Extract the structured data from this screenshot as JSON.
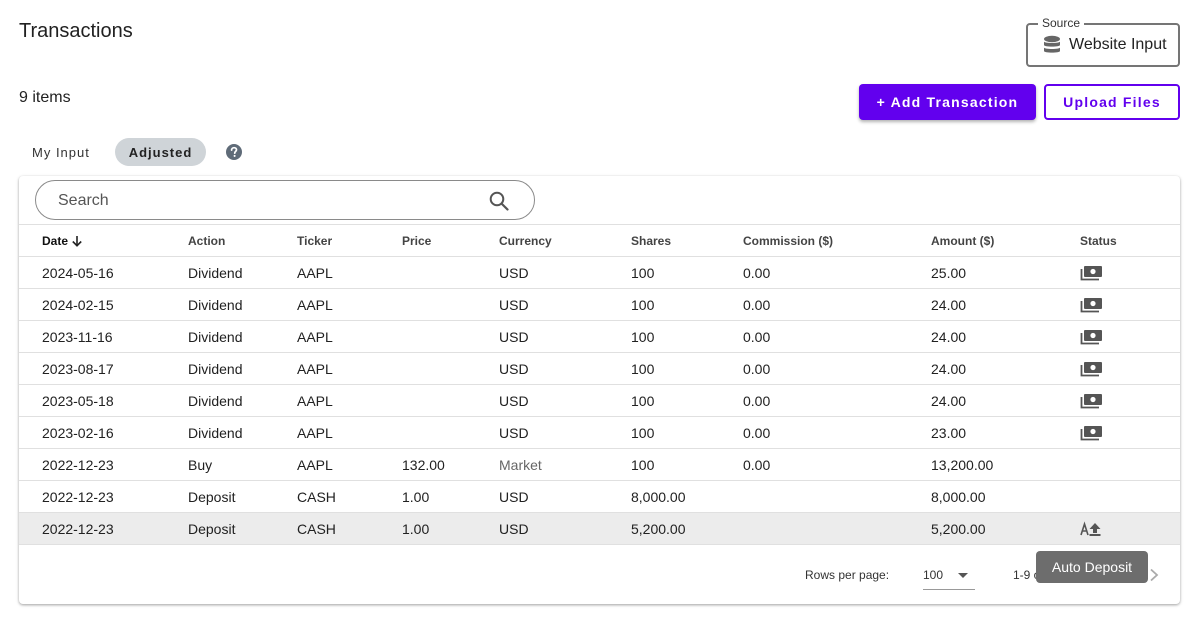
{
  "header": {
    "title": "Transactions",
    "item_count": "9 items"
  },
  "source": {
    "legend": "Source",
    "value": "Website Input",
    "icon": "database-icon"
  },
  "actions": {
    "add_label": "+ Add Transaction",
    "upload_label": "Upload Files"
  },
  "view_toggle": {
    "my_input": "My Input",
    "adjusted": "Adjusted",
    "selected": "Adjusted"
  },
  "search": {
    "placeholder": "Search",
    "value": ""
  },
  "colors": {
    "accent": "#6200ee",
    "toggle_selected": "#cfd4d8",
    "row_highlight": "#ececec",
    "tooltip_bg": "#6d6d6d"
  },
  "table": {
    "columns": {
      "date": "Date",
      "action": "Action",
      "ticker": "Ticker",
      "price": "Price",
      "currency": "Currency",
      "shares": "Shares",
      "commission": "Commission ($)",
      "amount": "Amount ($)",
      "status": "Status"
    },
    "sort": {
      "column": "date",
      "direction": "descending"
    },
    "rows": [
      {
        "date": "2024-05-16",
        "action": "Dividend",
        "ticker": "AAPL",
        "price": "",
        "currency": "USD",
        "shares": "100",
        "commission": "0.00",
        "amount": "25.00",
        "status_icon": "cash-icon"
      },
      {
        "date": "2024-02-15",
        "action": "Dividend",
        "ticker": "AAPL",
        "price": "",
        "currency": "USD",
        "shares": "100",
        "commission": "0.00",
        "amount": "24.00",
        "status_icon": "cash-icon"
      },
      {
        "date": "2023-11-16",
        "action": "Dividend",
        "ticker": "AAPL",
        "price": "",
        "currency": "USD",
        "shares": "100",
        "commission": "0.00",
        "amount": "24.00",
        "status_icon": "cash-icon"
      },
      {
        "date": "2023-08-17",
        "action": "Dividend",
        "ticker": "AAPL",
        "price": "",
        "currency": "USD",
        "shares": "100",
        "commission": "0.00",
        "amount": "24.00",
        "status_icon": "cash-icon"
      },
      {
        "date": "2023-05-18",
        "action": "Dividend",
        "ticker": "AAPL",
        "price": "",
        "currency": "USD",
        "shares": "100",
        "commission": "0.00",
        "amount": "24.00",
        "status_icon": "cash-icon"
      },
      {
        "date": "2023-02-16",
        "action": "Dividend",
        "ticker": "AAPL",
        "price": "",
        "currency": "USD",
        "shares": "100",
        "commission": "0.00",
        "amount": "23.00",
        "status_icon": "cash-icon"
      },
      {
        "date": "2022-12-23",
        "action": "Buy",
        "ticker": "AAPL",
        "price": "132.00",
        "currency": "Market",
        "shares": "100",
        "commission": "0.00",
        "amount": "13,200.00",
        "status_icon": ""
      },
      {
        "date": "2022-12-23",
        "action": "Deposit",
        "ticker": "CASH",
        "price": "1.00",
        "currency": "USD",
        "shares": "8,000.00",
        "commission": "",
        "amount": "8,000.00",
        "status_icon": ""
      },
      {
        "date": "2022-12-23",
        "action": "Deposit",
        "ticker": "CASH",
        "price": "1.00",
        "currency": "USD",
        "shares": "5,200.00",
        "commission": "",
        "amount": "5,200.00",
        "status_icon": "auto-deposit-icon"
      }
    ]
  },
  "pagination": {
    "rows_per_page_label": "Rows per page:",
    "rows_per_page": "100",
    "range": "1-9 of 9"
  },
  "tooltip": {
    "text": "Auto Deposit"
  }
}
